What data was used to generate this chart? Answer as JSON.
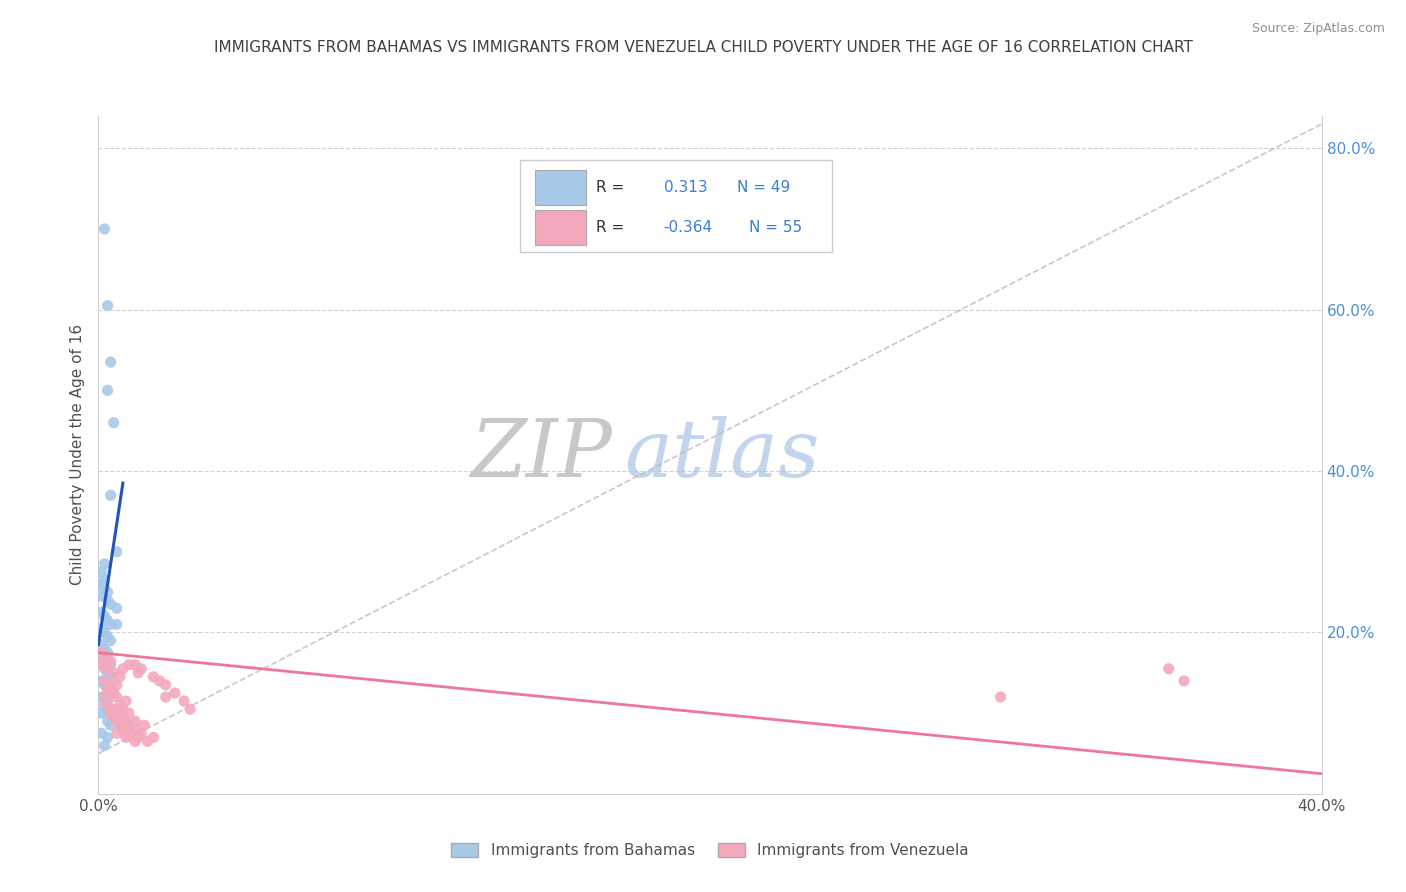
{
  "title": "IMMIGRANTS FROM BAHAMAS VS IMMIGRANTS FROM VENEZUELA CHILD POVERTY UNDER THE AGE OF 16 CORRELATION CHART",
  "source": "Source: ZipAtlas.com",
  "ylabel": "Child Poverty Under the Age of 16",
  "bahamas_R": "0.313",
  "bahamas_N": "49",
  "venezuela_R": "-0.364",
  "venezuela_N": "55",
  "legend_bahamas": "Immigrants from Bahamas",
  "legend_venezuela": "Immigrants from Venezuela",
  "bahamas_color": "#a8c8e8",
  "venezuela_color": "#f4a8bc",
  "bahamas_line_color": "#2255bb",
  "venezuela_line_color": "#ee7799",
  "watermark_zip": "ZIP",
  "watermark_atlas": "atlas",
  "background_color": "#ffffff",
  "plot_bg_color": "#ffffff",
  "grid_color": "#cccccc",
  "title_color": "#404040",
  "R_color": "#3a7fd5",
  "xlim": [
    0.0,
    0.4
  ],
  "ylim": [
    0.0,
    0.84
  ],
  "bahamas_scatter": [
    [
      0.002,
      0.7
    ],
    [
      0.003,
      0.605
    ],
    [
      0.004,
      0.535
    ],
    [
      0.003,
      0.5
    ],
    [
      0.005,
      0.46
    ],
    [
      0.004,
      0.37
    ],
    [
      0.006,
      0.3
    ],
    [
      0.002,
      0.285
    ],
    [
      0.001,
      0.275
    ],
    [
      0.002,
      0.265
    ],
    [
      0.001,
      0.26
    ],
    [
      0.002,
      0.255
    ],
    [
      0.003,
      0.25
    ],
    [
      0.001,
      0.245
    ],
    [
      0.003,
      0.24
    ],
    [
      0.004,
      0.235
    ],
    [
      0.006,
      0.23
    ],
    [
      0.001,
      0.225
    ],
    [
      0.002,
      0.22
    ],
    [
      0.003,
      0.215
    ],
    [
      0.004,
      0.21
    ],
    [
      0.006,
      0.21
    ],
    [
      0.001,
      0.205
    ],
    [
      0.002,
      0.2
    ],
    [
      0.003,
      0.195
    ],
    [
      0.004,
      0.19
    ],
    [
      0.001,
      0.185
    ],
    [
      0.002,
      0.18
    ],
    [
      0.003,
      0.175
    ],
    [
      0.001,
      0.17
    ],
    [
      0.003,
      0.165
    ],
    [
      0.004,
      0.16
    ],
    [
      0.002,
      0.155
    ],
    [
      0.003,
      0.15
    ],
    [
      0.004,
      0.145
    ],
    [
      0.001,
      0.14
    ],
    [
      0.002,
      0.135
    ],
    [
      0.003,
      0.13
    ],
    [
      0.004,
      0.125
    ],
    [
      0.001,
      0.12
    ],
    [
      0.003,
      0.115
    ],
    [
      0.002,
      0.11
    ],
    [
      0.003,
      0.105
    ],
    [
      0.001,
      0.1
    ],
    [
      0.003,
      0.09
    ],
    [
      0.004,
      0.085
    ],
    [
      0.001,
      0.075
    ],
    [
      0.003,
      0.07
    ],
    [
      0.002,
      0.06
    ]
  ],
  "venezuela_scatter": [
    [
      0.001,
      0.175
    ],
    [
      0.002,
      0.17
    ],
    [
      0.004,
      0.165
    ],
    [
      0.001,
      0.16
    ],
    [
      0.003,
      0.155
    ],
    [
      0.005,
      0.15
    ],
    [
      0.007,
      0.145
    ],
    [
      0.002,
      0.14
    ],
    [
      0.004,
      0.135
    ],
    [
      0.006,
      0.135
    ],
    [
      0.003,
      0.13
    ],
    [
      0.005,
      0.125
    ],
    [
      0.002,
      0.12
    ],
    [
      0.006,
      0.12
    ],
    [
      0.009,
      0.115
    ],
    [
      0.003,
      0.11
    ],
    [
      0.007,
      0.11
    ],
    [
      0.005,
      0.105
    ],
    [
      0.008,
      0.105
    ],
    [
      0.004,
      0.1
    ],
    [
      0.007,
      0.1
    ],
    [
      0.01,
      0.1
    ],
    [
      0.005,
      0.095
    ],
    [
      0.008,
      0.095
    ],
    [
      0.006,
      0.09
    ],
    [
      0.009,
      0.09
    ],
    [
      0.012,
      0.09
    ],
    [
      0.007,
      0.085
    ],
    [
      0.01,
      0.085
    ],
    [
      0.015,
      0.085
    ],
    [
      0.008,
      0.08
    ],
    [
      0.012,
      0.08
    ],
    [
      0.006,
      0.075
    ],
    [
      0.01,
      0.075
    ],
    [
      0.014,
      0.075
    ],
    [
      0.009,
      0.07
    ],
    [
      0.013,
      0.07
    ],
    [
      0.018,
      0.07
    ],
    [
      0.012,
      0.065
    ],
    [
      0.016,
      0.065
    ],
    [
      0.01,
      0.16
    ],
    [
      0.012,
      0.16
    ],
    [
      0.008,
      0.155
    ],
    [
      0.014,
      0.155
    ],
    [
      0.013,
      0.15
    ],
    [
      0.018,
      0.145
    ],
    [
      0.02,
      0.14
    ],
    [
      0.022,
      0.135
    ],
    [
      0.025,
      0.125
    ],
    [
      0.022,
      0.12
    ],
    [
      0.028,
      0.115
    ],
    [
      0.03,
      0.105
    ],
    [
      0.35,
      0.155
    ],
    [
      0.355,
      0.14
    ],
    [
      0.295,
      0.12
    ]
  ],
  "bahamas_line": [
    [
      0.0,
      0.185
    ],
    [
      0.008,
      0.385
    ]
  ],
  "venezuela_line": [
    [
      0.0,
      0.175
    ],
    [
      0.4,
      0.025
    ]
  ]
}
